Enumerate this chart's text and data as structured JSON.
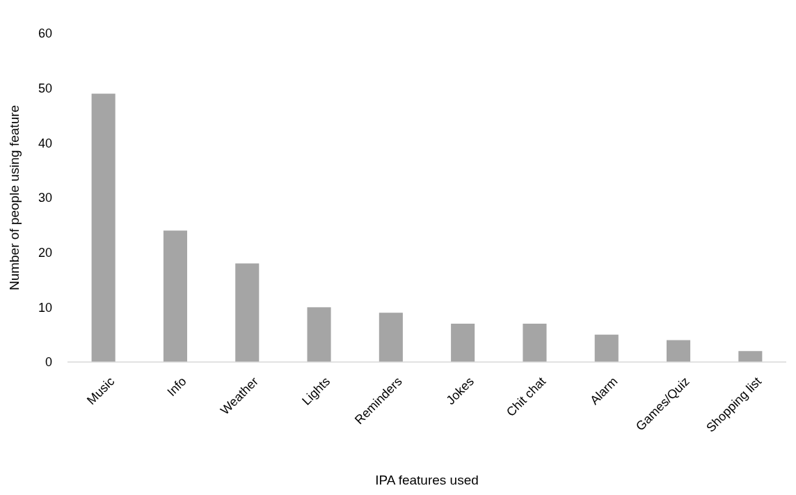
{
  "chart_data": {
    "type": "bar",
    "xlabel": "IPA features used",
    "ylabel": "Number of people using feature",
    "categories": [
      "Music",
      "Info",
      "Weather",
      "Lights",
      "Reminders",
      "Jokes",
      "Chit chat",
      "Alarm",
      "Games/Quiz",
      "Shopping list"
    ],
    "values": [
      49,
      24,
      18,
      10,
      9,
      7,
      7,
      5,
      4,
      2
    ],
    "color": "#a5a5a5",
    "ylim": [
      0,
      60
    ],
    "yticks": [
      0,
      10,
      20,
      30,
      40,
      50,
      60
    ],
    "grid": false
  }
}
